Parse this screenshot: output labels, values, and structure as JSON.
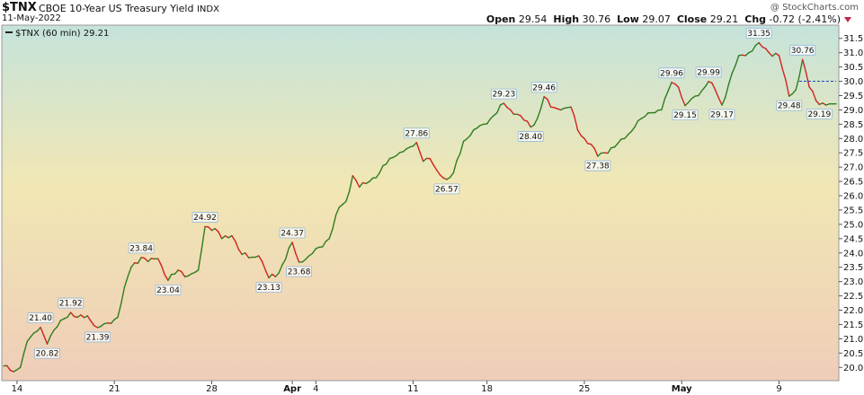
{
  "header": {
    "symbol": "$TNX",
    "name": "CBOE 10-Year US Treasury Yield",
    "exchange": "INDX",
    "date": "11-May-2022",
    "watermark": "@ StockCharts.com",
    "open_label": "Open",
    "open": "29.54",
    "high_label": "High",
    "high": "30.76",
    "low_label": "Low",
    "low": "29.07",
    "close_label": "Close",
    "close": "29.21",
    "chg_label": "Chg",
    "chg": "-0.72 (-2.41%)",
    "down_color": "#c0264a"
  },
  "chart_data": {
    "type": "line",
    "legend": "$TNX (60 min) 29.21",
    "legend_placement": "top-left",
    "y_axis_side": "right",
    "ylim": [
      19.6,
      31.9
    ],
    "yticks": [
      20.0,
      20.5,
      21.0,
      21.5,
      22.0,
      22.5,
      23.0,
      23.5,
      24.0,
      24.5,
      25.0,
      25.5,
      26.0,
      26.5,
      27.0,
      27.5,
      28.0,
      28.5,
      29.0,
      29.5,
      30.0,
      30.5,
      31.0,
      31.5
    ],
    "x_ticks": [
      {
        "label": "14",
        "i": 4
      },
      {
        "label": "21",
        "i": 33
      },
      {
        "label": "28",
        "i": 62
      },
      {
        "label": "Apr",
        "i": 86
      },
      {
        "label": "4",
        "i": 93
      },
      {
        "label": "11",
        "i": 122
      },
      {
        "label": "18",
        "i": 144
      },
      {
        "label": "25",
        "i": 173
      },
      {
        "label": "May",
        "i": 202
      },
      {
        "label": "9",
        "i": 231
      }
    ],
    "n_points": 249,
    "anchors": [
      [
        0,
        20.05
      ],
      [
        3,
        19.85
      ],
      [
        5,
        20.0
      ],
      [
        7,
        20.9
      ],
      [
        9,
        21.2
      ],
      [
        11,
        21.4
      ],
      [
        13,
        20.82
      ],
      [
        15,
        21.3
      ],
      [
        18,
        21.7
      ],
      [
        20,
        21.92
      ],
      [
        22,
        21.75
      ],
      [
        25,
        21.8
      ],
      [
        28,
        21.39
      ],
      [
        31,
        21.55
      ],
      [
        34,
        21.75
      ],
      [
        36,
        22.8
      ],
      [
        38,
        23.5
      ],
      [
        41,
        23.84
      ],
      [
        43,
        23.7
      ],
      [
        46,
        23.8
      ],
      [
        49,
        23.04
      ],
      [
        52,
        23.4
      ],
      [
        55,
        23.2
      ],
      [
        58,
        23.4
      ],
      [
        60,
        24.92
      ],
      [
        63,
        24.85
      ],
      [
        65,
        24.5
      ],
      [
        68,
        24.6
      ],
      [
        71,
        23.95
      ],
      [
        74,
        23.85
      ],
      [
        76,
        23.9
      ],
      [
        79,
        23.13
      ],
      [
        82,
        23.3
      ],
      [
        86,
        24.37
      ],
      [
        88,
        23.68
      ],
      [
        91,
        23.9
      ],
      [
        94,
        24.2
      ],
      [
        97,
        24.5
      ],
      [
        100,
        25.6
      ],
      [
        102,
        25.8
      ],
      [
        104,
        26.7
      ],
      [
        106,
        26.3
      ],
      [
        109,
        26.5
      ],
      [
        112,
        26.8
      ],
      [
        115,
        27.3
      ],
      [
        117,
        27.4
      ],
      [
        121,
        27.7
      ],
      [
        123,
        27.86
      ],
      [
        125,
        27.2
      ],
      [
        127,
        27.3
      ],
      [
        129,
        26.9
      ],
      [
        132,
        26.57
      ],
      [
        134,
        26.8
      ],
      [
        137,
        27.9
      ],
      [
        140,
        28.3
      ],
      [
        143,
        28.5
      ],
      [
        146,
        28.8
      ],
      [
        149,
        29.23
      ],
      [
        151,
        29.0
      ],
      [
        154,
        28.8
      ],
      [
        157,
        28.4
      ],
      [
        159,
        28.7
      ],
      [
        161,
        29.46
      ],
      [
        163,
        29.1
      ],
      [
        166,
        29.0
      ],
      [
        169,
        29.1
      ],
      [
        171,
        28.3
      ],
      [
        173,
        28.0
      ],
      [
        175,
        27.8
      ],
      [
        177,
        27.38
      ],
      [
        179,
        27.5
      ],
      [
        182,
        27.7
      ],
      [
        185,
        28.0
      ],
      [
        188,
        28.4
      ],
      [
        190,
        28.7
      ],
      [
        193,
        28.9
      ],
      [
        196,
        29.0
      ],
      [
        199,
        29.96
      ],
      [
        201,
        29.8
      ],
      [
        203,
        29.15
      ],
      [
        205,
        29.4
      ],
      [
        207,
        29.5
      ],
      [
        210,
        29.99
      ],
      [
        212,
        29.7
      ],
      [
        214,
        29.17
      ],
      [
        216,
        29.9
      ],
      [
        219,
        30.9
      ],
      [
        222,
        31.0
      ],
      [
        225,
        31.35
      ],
      [
        228,
        31.0
      ],
      [
        231,
        30.9
      ],
      [
        234,
        29.48
      ],
      [
        236,
        29.7
      ],
      [
        238,
        30.76
      ],
      [
        240,
        29.8
      ],
      [
        243,
        29.19
      ],
      [
        246,
        29.21
      ]
    ],
    "annotations": [
      {
        "label": "21.40",
        "i": 11,
        "v": 21.4,
        "pos": "above"
      },
      {
        "label": "20.82",
        "i": 13,
        "v": 20.82,
        "pos": "below"
      },
      {
        "label": "21.92",
        "i": 20,
        "v": 21.92,
        "pos": "above"
      },
      {
        "label": "21.39",
        "i": 28,
        "v": 21.39,
        "pos": "below"
      },
      {
        "label": "23.84",
        "i": 41,
        "v": 23.84,
        "pos": "above"
      },
      {
        "label": "23.04",
        "i": 49,
        "v": 23.04,
        "pos": "below"
      },
      {
        "label": "24.92",
        "i": 60,
        "v": 24.92,
        "pos": "above"
      },
      {
        "label": "23.13",
        "i": 79,
        "v": 23.13,
        "pos": "below"
      },
      {
        "label": "24.37",
        "i": 86,
        "v": 24.37,
        "pos": "above"
      },
      {
        "label": "23.68",
        "i": 88,
        "v": 23.68,
        "pos": "below"
      },
      {
        "label": "27.86",
        "i": 123,
        "v": 27.86,
        "pos": "above"
      },
      {
        "label": "26.57",
        "i": 132,
        "v": 26.57,
        "pos": "below"
      },
      {
        "label": "29.23",
        "i": 149,
        "v": 29.23,
        "pos": "above"
      },
      {
        "label": "28.40",
        "i": 157,
        "v": 28.4,
        "pos": "below"
      },
      {
        "label": "29.46",
        "i": 161,
        "v": 29.46,
        "pos": "above"
      },
      {
        "label": "27.38",
        "i": 177,
        "v": 27.38,
        "pos": "below"
      },
      {
        "label": "29.96",
        "i": 199,
        "v": 29.96,
        "pos": "above"
      },
      {
        "label": "29.15",
        "i": 203,
        "v": 29.15,
        "pos": "below"
      },
      {
        "label": "29.99",
        "i": 210,
        "v": 29.99,
        "pos": "above"
      },
      {
        "label": "29.17",
        "i": 214,
        "v": 29.17,
        "pos": "below"
      },
      {
        "label": "31.35",
        "i": 225,
        "v": 31.35,
        "pos": "above"
      },
      {
        "label": "29.48",
        "i": 234,
        "v": 29.48,
        "pos": "below"
      },
      {
        "label": "30.76",
        "i": 238,
        "v": 30.76,
        "pos": "above"
      },
      {
        "label": "29.19",
        "i": 243,
        "v": 29.19,
        "pos": "below"
      }
    ],
    "reference_line": 30.0,
    "up_color": "#2f7d1f",
    "down_color": "#d0231e"
  }
}
